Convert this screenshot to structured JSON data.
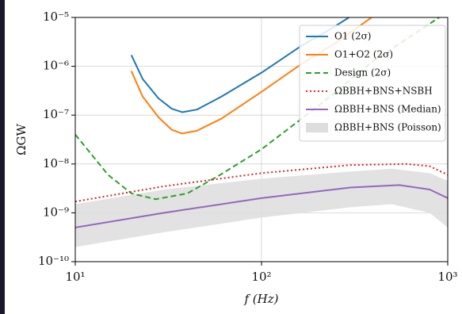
{
  "chart_data": {
    "type": "line",
    "log_x": true,
    "log_y": true,
    "grid": true,
    "legend": "upper right",
    "x_label": "f (Hz)",
    "y_label": "ΩGW",
    "xlim": [
      10,
      1000
    ],
    "ylim": [
      1e-10,
      1e-05
    ],
    "xticks": [
      {
        "value": 10,
        "label": "10¹"
      },
      {
        "value": 100,
        "label": "10²"
      },
      {
        "value": 1000,
        "label": "10³"
      }
    ],
    "yticks": [
      {
        "value": 1e-10,
        "label": "10⁻¹⁰"
      },
      {
        "value": 1e-09,
        "label": "10⁻⁹"
      },
      {
        "value": 1e-08,
        "label": "10⁻⁸"
      },
      {
        "value": 1e-07,
        "label": "10⁻⁷"
      },
      {
        "value": 1e-06,
        "label": "10⁻⁶"
      },
      {
        "value": 1e-05,
        "label": "10⁻⁵"
      }
    ],
    "series": [
      {
        "name": "O1 (2σ)",
        "color": "#1f77b4",
        "style": "solid",
        "x": [
          20,
          23,
          28,
          33,
          37.5,
          45,
          61,
          100,
          163,
          230,
          295
        ],
        "values": [
          1.7e-06,
          5.5e-07,
          2.2e-07,
          1.35e-07,
          1.15e-07,
          1.3e-07,
          2.4e-07,
          7.4e-07,
          2.6e-06,
          5.5e-06,
          1e-05
        ]
      },
      {
        "name": "O1+O2 (2σ)",
        "color": "#ff7f0e",
        "style": "solid",
        "x": [
          20,
          23,
          28,
          33,
          37.5,
          45,
          61,
          100,
          163,
          250,
          390
        ],
        "values": [
          8e-07,
          2.4e-07,
          9e-08,
          5e-08,
          4.2e-08,
          4.8e-08,
          8.5e-08,
          3e-07,
          1.1e-06,
          3e-06,
          1e-05
        ]
      },
      {
        "name": "Design (2σ)",
        "color": "#2ca02c",
        "style": "dashed",
        "x": [
          10,
          15,
          20,
          27,
          40,
          60,
          100,
          200,
          400,
          900
        ],
        "values": [
          4e-08,
          6e-09,
          2.5e-09,
          1.9e-09,
          2.5e-09,
          6e-09,
          2e-08,
          1.5e-07,
          1.3e-06,
          1e-05
        ]
      },
      {
        "name": "ΩBBH+BNS+NSBH",
        "color": "#d62728",
        "style": "dotted",
        "x": [
          10,
          30,
          100,
          300,
          600,
          800,
          1000
        ],
        "values": [
          1.7e-09,
          3.5e-09,
          6.5e-09,
          9.5e-09,
          1e-08,
          9e-09,
          6e-09
        ]
      },
      {
        "name": "ΩBBH+BNS (Median)",
        "color": "#9467bd",
        "style": "solid",
        "x": [
          10,
          30,
          100,
          300,
          550,
          800,
          1000
        ],
        "values": [
          5e-10,
          1e-09,
          2e-09,
          3.3e-09,
          3.7e-09,
          3e-09,
          2e-09
        ]
      },
      {
        "name": "ΩBBH+BNS (Poisson)",
        "color": "#dddddd",
        "style": "band",
        "x": [
          10,
          30,
          100,
          300,
          500,
          800,
          1000
        ],
        "lower": [
          2e-10,
          4e-10,
          8e-10,
          1.3e-09,
          1.5e-09,
          1e-09,
          5e-10
        ],
        "upper": [
          1.5e-09,
          3e-09,
          5e-09,
          7e-09,
          8e-09,
          6.5e-09,
          4.5e-09
        ]
      }
    ]
  }
}
